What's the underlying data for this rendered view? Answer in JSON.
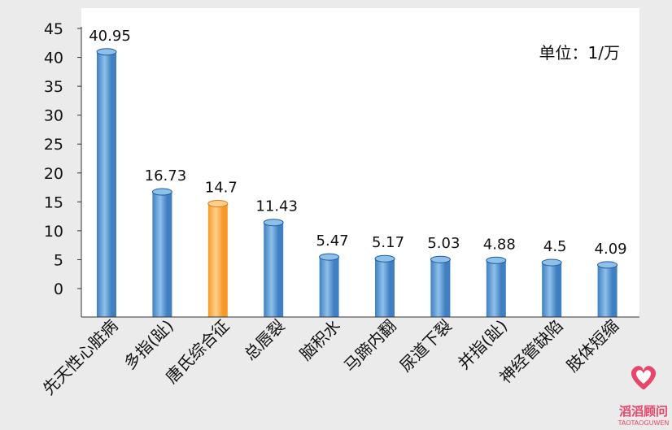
{
  "chart_data": {
    "type": "bar",
    "categories": [
      "先天性心脏病",
      "多指(趾)",
      "唐氏综合征",
      "总唇裂",
      "脑积水",
      "马蹄内翻",
      "尿道下裂",
      "并指(趾)",
      "神经管缺陷",
      "肢体短缩"
    ],
    "values": [
      40.95,
      16.73,
      14.7,
      11.43,
      5.47,
      5.17,
      5.03,
      4.88,
      4.5,
      4.09
    ],
    "value_labels": [
      "40.95",
      "16.73",
      "14.7",
      "11.43",
      "5.47",
      "5.17",
      "5.03",
      "4.88",
      "4.5",
      "4.09"
    ],
    "highlight_index": 2,
    "ylim": [
      0,
      45
    ],
    "yticks": [
      "0",
      "5",
      "10",
      "15",
      "20",
      "25",
      "30",
      "35",
      "40",
      "45"
    ],
    "note": "单位：1/万",
    "colors": {
      "bar": "#3f7fc2",
      "bar_dark": "#1f5c9c",
      "bar_light": "#8fc0ea",
      "highlight": "#f59a2a",
      "highlight_dark": "#d9781a",
      "highlight_light": "#ffd08a",
      "plot_bg": "#ffffff",
      "page_bg": "#ebebeb",
      "axis": "#333333"
    }
  },
  "watermark": {
    "icon": "heart-logo-icon",
    "text": "滔滔顾问",
    "subtext": "TAOTAOGUWEN",
    "color": "#e8456a"
  }
}
